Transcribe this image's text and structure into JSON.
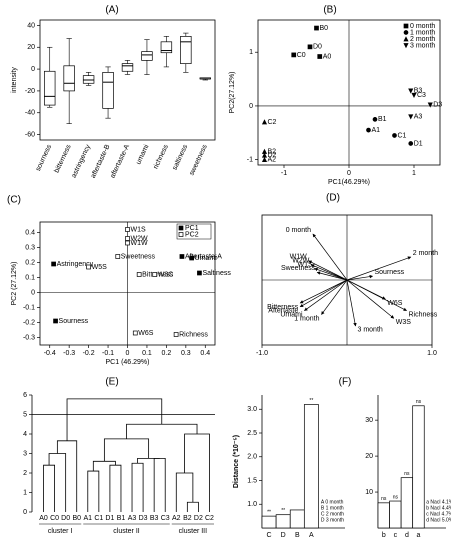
{
  "chart_data": [
    {
      "type": "box",
      "panel_label": "(A)",
      "ylabel": "intensity",
      "categories": [
        "sourness",
        "bitterness",
        "astringency",
        "aftertaste-B",
        "aftertaste-A",
        "umami",
        "richness",
        "saltiness",
        "sweetness"
      ],
      "min": [
        -35,
        -50,
        -15,
        -45,
        -5,
        -5,
        2,
        -3,
        -10
      ],
      "q1": [
        -33,
        -20,
        -13,
        -36,
        -2,
        8,
        15,
        5,
        -9
      ],
      "median": [
        -25,
        -13,
        -10,
        -12,
        3,
        13,
        17,
        25,
        -9
      ],
      "q3": [
        -2,
        3,
        -6,
        -3,
        5,
        16,
        25,
        30,
        -8
      ],
      "max": [
        20,
        28,
        -3,
        2,
        8,
        27,
        30,
        33,
        -8
      ],
      "color": "#ffffff",
      "ylim": [
        -65,
        45
      ],
      "yticks": [
        -60,
        -40,
        -20,
        0,
        20,
        40
      ]
    },
    {
      "type": "scatter",
      "panel_label": "(B)",
      "xlabel": "PC1(46.29%)",
      "ylabel": "PC2(27.12%)",
      "xlim": [
        -1.4,
        1.4
      ],
      "ylim": [
        -1.1,
        1.6
      ],
      "xticks": [
        -1,
        0,
        1
      ],
      "yticks": [
        -1,
        0,
        1
      ],
      "zero_lines": true,
      "legend": "upper-right",
      "series": [
        {
          "name": "0 month",
          "marker": "square",
          "filled": true,
          "color": "#000000",
          "labels": [
            "A0",
            "B0",
            "C0",
            "D0"
          ],
          "x": [
            -0.45,
            -0.5,
            -0.85,
            -0.6
          ],
          "y": [
            0.92,
            1.45,
            0.95,
            1.1
          ]
        },
        {
          "name": "1 month",
          "marker": "circle",
          "filled": true,
          "color": "#000000",
          "labels": [
            "A1",
            "B1",
            "C1",
            "D1"
          ],
          "x": [
            0.3,
            0.4,
            0.7,
            0.95
          ],
          "y": [
            -0.45,
            -0.25,
            -0.55,
            -0.7
          ]
        },
        {
          "name": "2 month",
          "marker": "triangle-up",
          "filled": true,
          "color": "#000000",
          "labels": [
            "A2",
            "B2",
            "C2",
            "D2"
          ],
          "x": [
            -1.3,
            -1.3,
            -1.3,
            -1.3
          ],
          "y": [
            -1.0,
            -0.85,
            -0.3,
            -0.92
          ]
        },
        {
          "name": "3 month",
          "marker": "triangle-down",
          "filled": true,
          "color": "#000000",
          "labels": [
            "A3",
            "B3",
            "C3",
            "D3"
          ],
          "x": [
            0.95,
            0.95,
            1.0,
            1.25
          ],
          "y": [
            -0.2,
            0.28,
            0.2,
            0.02
          ]
        }
      ]
    },
    {
      "type": "scatter",
      "panel_label": "(C)",
      "xlabel": "PC1 (46.29%)",
      "ylabel": "PC2 (27.12%)",
      "xlim": [
        -0.45,
        0.45
      ],
      "ylim": [
        -0.35,
        0.47
      ],
      "xticks": [
        -0.4,
        -0.3,
        -0.2,
        -0.1,
        0,
        0.1,
        0.2,
        0.3,
        0.4
      ],
      "yticks": [
        -0.3,
        -0.2,
        -0.1,
        0,
        0.1,
        0.2,
        0.3,
        0.4
      ],
      "zero_lines": true,
      "legend": "upper-right",
      "series": [
        {
          "name": "PC1",
          "marker": "square",
          "filled": true,
          "color": "#000000",
          "labels": [
            "Astringency",
            "Sourness",
            "Aftertaste-A",
            "Umami",
            "Saltiness"
          ],
          "x": [
            -0.38,
            -0.37,
            0.28,
            0.33,
            0.37
          ],
          "y": [
            0.19,
            -0.19,
            0.24,
            0.23,
            0.13
          ]
        },
        {
          "name": "PC2",
          "marker": "square",
          "filled": false,
          "color": "#000000",
          "labels": [
            "W5S",
            "W1S",
            "W2W",
            "W1W",
            "Sweetness",
            "Bitterness",
            "W3C",
            "W6S",
            "Richness"
          ],
          "x": [
            -0.2,
            0.0,
            0.0,
            0.0,
            -0.05,
            0.06,
            0.14,
            0.04,
            0.25
          ],
          "y": [
            0.17,
            0.42,
            0.36,
            0.33,
            0.24,
            0.12,
            0.12,
            -0.27,
            -0.28
          ]
        }
      ]
    },
    {
      "type": "biplot",
      "panel_label": "(D)",
      "xlim": [
        -1.0,
        1.0
      ],
      "ylim": [
        -0.85,
        0.85
      ],
      "xticks": [
        {
          "value": -1.0,
          "label": "-1.0"
        },
        {
          "value": 1.0,
          "label": "1.0"
        }
      ],
      "zero_lines": true,
      "color": "#000000",
      "labels": [
        "0 month",
        "2 month",
        "Sourness",
        "W1W",
        "W2W",
        "W1S",
        "Sweetness",
        "Bitterness",
        "Aftertaste",
        "Umami",
        "1 month",
        "3 month",
        "W6S",
        "Richness",
        "W3S"
      ],
      "x": [
        -0.4,
        0.75,
        0.3,
        -0.45,
        -0.42,
        -0.38,
        -0.35,
        -0.55,
        -0.55,
        -0.5,
        -0.3,
        0.1,
        0.45,
        0.7,
        0.55
      ],
      "y": [
        0.6,
        0.3,
        0.05,
        0.25,
        0.2,
        0.15,
        0.1,
        -0.3,
        -0.35,
        -0.4,
        -0.45,
        -0.6,
        -0.25,
        -0.4,
        -0.5
      ]
    },
    {
      "type": "dendrogram",
      "panel_label": "(E)",
      "ylim": [
        0,
        6
      ],
      "yticks": [
        0,
        1,
        2,
        3,
        4,
        5,
        6
      ],
      "cut_line": 5,
      "leaves": [
        "A0",
        "C0",
        "D0",
        "B0",
        "A1",
        "C1",
        "D1",
        "B1",
        "A3",
        "D3",
        "B3",
        "C3",
        "A2",
        "B2",
        "D2",
        "C2"
      ],
      "merges": [
        [
          0,
          1,
          2.4
        ],
        [
          16,
          2,
          3.0
        ],
        [
          17,
          3,
          3.65
        ],
        [
          4,
          5,
          2.1
        ],
        [
          6,
          7,
          2.4
        ],
        [
          19,
          20,
          2.6
        ],
        [
          8,
          9,
          2.5
        ],
        [
          10,
          11,
          2.75
        ],
        [
          22,
          23,
          2.75
        ],
        [
          21,
          24,
          3.75
        ],
        [
          13,
          14,
          0.5
        ],
        [
          12,
          26,
          2.0
        ],
        [
          27,
          15,
          4.0
        ],
        [
          25,
          28,
          4.5
        ],
        [
          18,
          29,
          5.8
        ]
      ],
      "clusters": [
        {
          "label": "cluster I",
          "leaves": [
            0,
            3
          ]
        },
        {
          "label": "cluster II",
          "leaves": [
            4,
            11
          ]
        },
        {
          "label": "cluster III",
          "leaves": [
            12,
            15
          ]
        }
      ]
    },
    {
      "type": "bar",
      "panel_label": "(F)",
      "ylabel": "Distance (*10⁻⁵)",
      "categories": [
        "C",
        "D",
        "B",
        "A"
      ],
      "values": [
        0.75,
        0.78,
        0.88,
        3.1
      ],
      "significance": [
        "**",
        "**",
        null,
        "**"
      ],
      "legend": [
        "A 0 month",
        "B 1 month",
        "C 2 month",
        "D 3 month"
      ],
      "color": "#ffffff",
      "ylim": [
        0.5,
        3.3
      ],
      "yticks": [
        {
          "value": 1.0,
          "label": "1.0"
        },
        {
          "value": 1.5,
          "label": "1.5"
        },
        {
          "value": 2.0,
          "label": "2.0"
        },
        {
          "value": 2.5,
          "label": "2.5"
        },
        {
          "value": 3.0,
          "label": "3.0"
        }
      ]
    },
    {
      "type": "bar",
      "categories": [
        "b",
        "c",
        "d",
        "a"
      ],
      "values": [
        7,
        7.5,
        14,
        34
      ],
      "significance": [
        "ns",
        "ns",
        "ns",
        "ns"
      ],
      "legend": [
        "a Nacl 4.1%",
        "b Nacl 4.4%",
        "c Nacl 4.7%",
        "d Nacl 5.0%"
      ],
      "color": "#ffffff",
      "ylim": [
        0,
        37
      ],
      "yticks": [
        10,
        20,
        30
      ]
    }
  ]
}
